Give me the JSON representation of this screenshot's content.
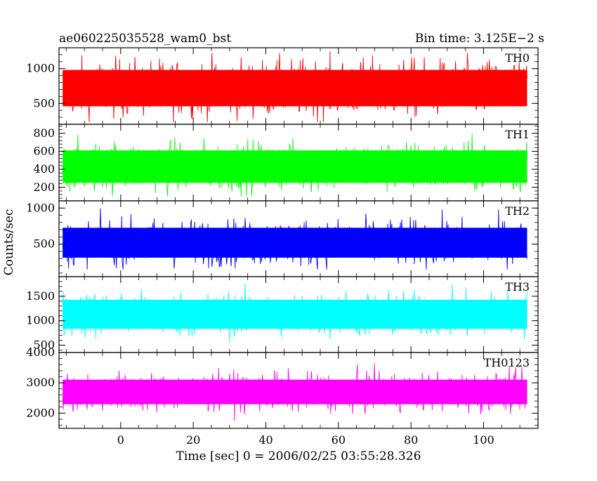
{
  "chart_data": {
    "type": "line",
    "title_left": "ae060225035528_wam0_bst",
    "title_right": "Bin time: 3.125E−2 s",
    "xlabel": "Time [sec] 0 = 2006/02/25 03:55:28.326",
    "ylabel": "Counts/sec",
    "xlim": [
      -17,
      115
    ],
    "x_ticks": [
      0,
      20,
      40,
      60,
      80,
      100
    ],
    "x_tick_labels": [
      "0",
      "20",
      "40",
      "60",
      "80",
      "100"
    ],
    "x_data_range": [
      -16,
      112
    ],
    "bin_time": 0.03125,
    "grid": false,
    "panels": [
      {
        "name": "TH0",
        "color": "#ff0000",
        "ylim": [
          200,
          1300
        ],
        "y_ticks": [
          500,
          1000
        ],
        "y_tick_labels": [
          "500",
          "1000"
        ],
        "center": 720,
        "spread": 290,
        "min": 230,
        "max": 1300
      },
      {
        "name": "TH1",
        "color": "#00ff00",
        "ylim": [
          50,
          900
        ],
        "y_ticks": [
          200,
          400,
          600,
          800
        ],
        "y_tick_labels": [
          "200",
          "400",
          "600",
          "800"
        ],
        "center": 430,
        "spread": 200,
        "min": 100,
        "max": 890
      },
      {
        "name": "TH2",
        "color": "#0000ff",
        "ylim": [
          50,
          1100
        ],
        "y_ticks": [
          500,
          1000
        ],
        "y_tick_labels": [
          "500",
          "1000"
        ],
        "center": 520,
        "spread": 230,
        "min": 150,
        "max": 1100
      },
      {
        "name": "TH3",
        "color": "#00ffff",
        "ylim": [
          350,
          1900
        ],
        "y_ticks": [
          500,
          1000,
          1500
        ],
        "y_tick_labels": [
          "500",
          "1000",
          "1500"
        ],
        "center": 1130,
        "spread": 330,
        "min": 380,
        "max": 1900
      },
      {
        "name": "TH0123",
        "color": "#ff00ff",
        "ylim": [
          1500,
          4000
        ],
        "y_ticks": [
          2000,
          3000,
          4000
        ],
        "y_tick_labels": [
          "2000",
          "3000",
          "4000"
        ],
        "center": 2700,
        "spread": 450,
        "min": 1500,
        "max": 4000
      }
    ]
  }
}
